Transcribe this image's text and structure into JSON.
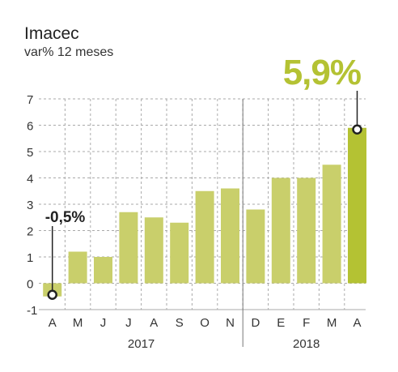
{
  "chart_data": {
    "type": "bar",
    "title": "Imacec",
    "subtitle": "var% 12 meses",
    "categories": [
      "A",
      "M",
      "J",
      "J",
      "A",
      "S",
      "O",
      "N",
      "D",
      "E",
      "F",
      "M",
      "A"
    ],
    "values": [
      -0.5,
      1.2,
      1.0,
      2.7,
      2.5,
      2.3,
      3.5,
      3.6,
      2.8,
      4.0,
      4.0,
      4.5,
      5.9
    ],
    "groups": [
      {
        "label": "2017",
        "count": 8
      },
      {
        "label": "2018",
        "count": 5
      }
    ],
    "y_ticks": [
      "-1",
      "0",
      "1",
      "2",
      "3",
      "4",
      "5",
      "6",
      "7"
    ],
    "ylim": [
      -1,
      7
    ],
    "grid": true,
    "annotations": [
      {
        "index": 0,
        "text": "-0,5%"
      },
      {
        "index": 12,
        "text": "5,9%"
      }
    ],
    "colors": {
      "bar": "#c9cf6b",
      "highlight": "#b4c233",
      "grid": "#aaaaaa",
      "axis": "#555555",
      "text": "#333333"
    }
  }
}
